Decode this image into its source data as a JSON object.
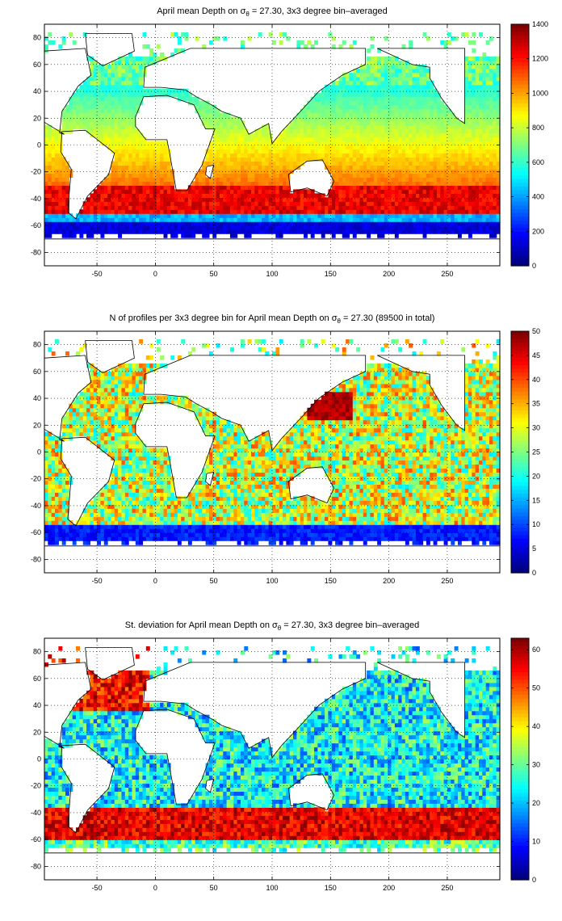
{
  "panels": [
    {
      "id": "mean-depth",
      "title_pre": "April mean Depth on ",
      "title_post": " = 27.30, 3x3 degree bin–averaged",
      "colorbar_ticks": [
        "1400",
        "1200",
        "1000",
        "800",
        "600",
        "400",
        "200",
        "0"
      ],
      "colorbar_range": [
        0,
        1400
      ]
    },
    {
      "id": "n-profiles",
      "title_pre": "N of profiles per 3x3 degree bin for April mean Depth on ",
      "title_post": " = 27.30 (89500 in total)",
      "colorbar_ticks": [
        "50",
        "45",
        "40",
        "35",
        "30",
        "25",
        "20",
        "15",
        "10",
        "5",
        "0"
      ],
      "colorbar_range": [
        0,
        50
      ]
    },
    {
      "id": "st-deviation",
      "title_pre": "St. deviation for April mean Depth on ",
      "title_post": " = 27.30, 3x3 degree bin–averaged",
      "colorbar_ticks": [
        "60",
        "50",
        "40",
        "30",
        "20",
        "10",
        "0"
      ],
      "colorbar_range": [
        0,
        63
      ]
    }
  ],
  "sigma_symbol": "σ",
  "sigma_sub": "θ",
  "x_ticks": [
    "-50",
    "0",
    "50",
    "100",
    "150",
    "200",
    "250"
  ],
  "y_ticks": [
    "80",
    "60",
    "40",
    "20",
    "0",
    "-20",
    "-40",
    "-60",
    "-80"
  ],
  "colormap": "jet"
}
